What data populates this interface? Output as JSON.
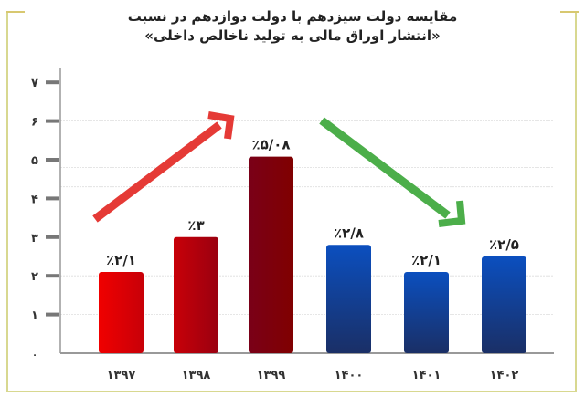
{
  "chart_data": {
    "type": "bar",
    "title": [
      "مقایسه دولت سیزدهم با دولت دوازدهم در نسبت",
      "«انتشار اوراق مالی به تولید ناخالص داخلی»"
    ],
    "categories": [
      "۱۳۹۷",
      "۱۳۹۸",
      "۱۳۹۹",
      "۱۴۰۰",
      "۱۴۰۱",
      "۱۴۰۲"
    ],
    "values": [
      2.1,
      3,
      5.08,
      2.8,
      2.1,
      2.5
    ],
    "data_labels": [
      "٪۲/۱",
      "٪۳",
      "٪۵/۰۸",
      "٪۲/۸",
      "٪۲/۱",
      "٪۲/۵"
    ],
    "y_ticks": [
      "۰",
      "۱",
      "۲",
      "۳",
      "۴",
      "۵",
      "۶",
      "۷"
    ],
    "ylim": [
      0,
      7
    ],
    "grid": true,
    "colors": {
      "bars": [
        "#e60000",
        "#c00008",
        "#7a0010",
        "#0a4aa8",
        "#0a4aa8",
        "#0a4aa8"
      ],
      "arrow_up": "#e53a36",
      "arrow_down": "#4cae4a"
    },
    "annotations": [
      "red-arrow-up",
      "green-arrow-down"
    ]
  }
}
